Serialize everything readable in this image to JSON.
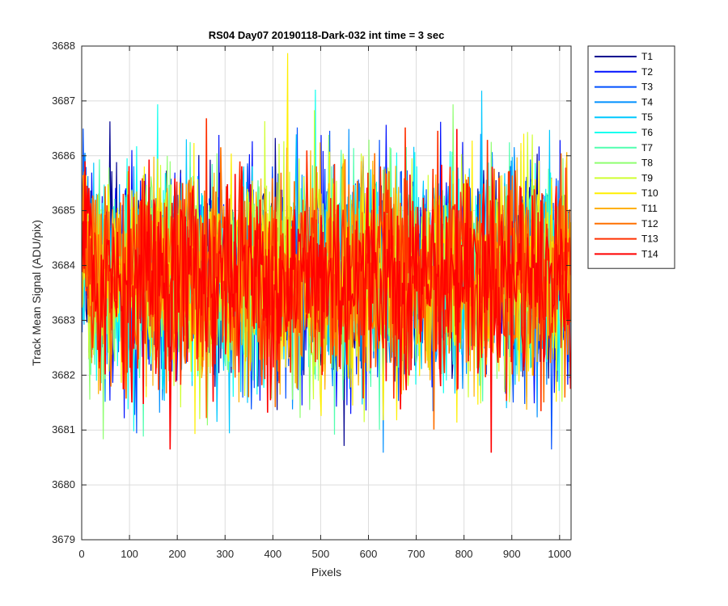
{
  "chart_data": {
    "type": "line",
    "title": "RS04 Day07 20190118-Dark-032 int time = 3 sec",
    "xlabel": "Pixels",
    "ylabel": "Track Mean Signal (ADU/pix)",
    "xlim": [
      0,
      1024
    ],
    "ylim": [
      3679,
      3688
    ],
    "xticks": [
      0,
      100,
      200,
      300,
      400,
      500,
      600,
      700,
      800,
      900,
      1000
    ],
    "yticks": [
      3679,
      3680,
      3681,
      3682,
      3683,
      3684,
      3685,
      3686,
      3687,
      3688
    ],
    "grid": true,
    "legend_position": "outside-top-right",
    "x_start": 1,
    "x_end": 1024,
    "series_mean_approx": 3683.8,
    "series_spread_approx": [
      3680,
      3687.9
    ],
    "series": [
      {
        "name": "T1",
        "color": "#00008f"
      },
      {
        "name": "T2",
        "color": "#0010ff"
      },
      {
        "name": "T3",
        "color": "#0050ff"
      },
      {
        "name": "T4",
        "color": "#0090ff"
      },
      {
        "name": "T5",
        "color": "#00c8ff"
      },
      {
        "name": "T6",
        "color": "#10ffef"
      },
      {
        "name": "T7",
        "color": "#50ffaf"
      },
      {
        "name": "T8",
        "color": "#8fff70"
      },
      {
        "name": "T9",
        "color": "#cfff30"
      },
      {
        "name": "T10",
        "color": "#ffef00"
      },
      {
        "name": "T11",
        "color": "#ffb000"
      },
      {
        "name": "T12",
        "color": "#ff7000"
      },
      {
        "name": "T13",
        "color": "#ff3000"
      },
      {
        "name": "T14",
        "color": "#ff0000"
      }
    ]
  }
}
